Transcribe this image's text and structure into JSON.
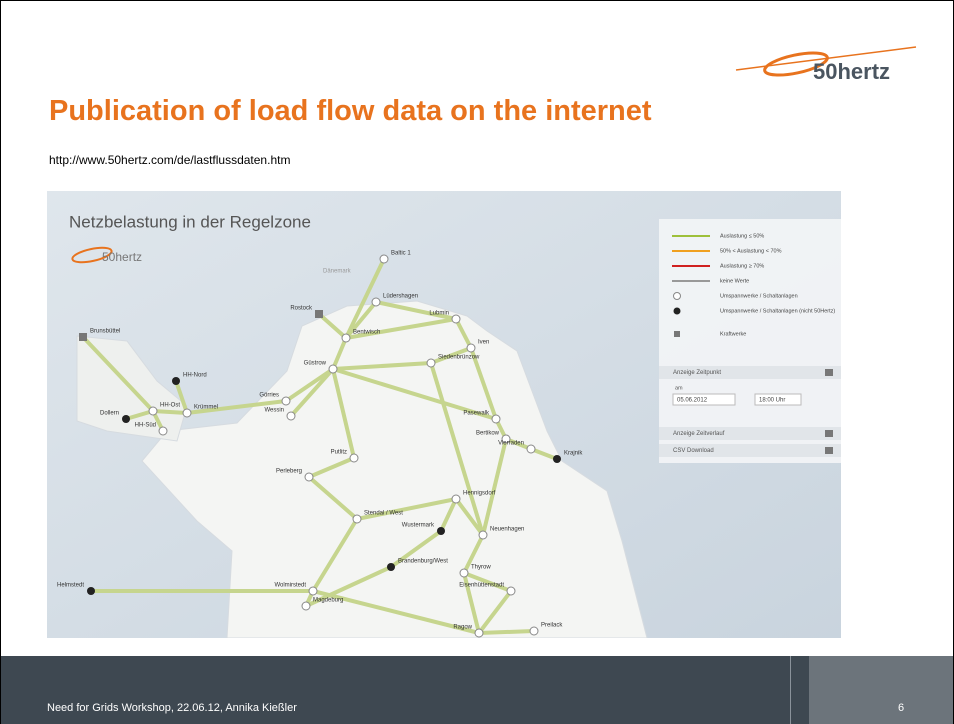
{
  "header": {
    "logo": "50hertz",
    "title": "Publication of load flow data on the internet",
    "url": "http://www.50hertz.com/de/lastflussdaten.htm"
  },
  "map": {
    "title": "Netzbelastung in der Regelzone",
    "logo": "50hertz",
    "places": [
      "Baltic 1",
      "Dänemark",
      "Lüdershagen",
      "Rostock",
      "Lubmin",
      "Brunsbüttel",
      "Bentwisch",
      "Iven",
      "Siedenbrünzow",
      "Güstrow",
      "HH-Nord",
      "Görries",
      "Dollern",
      "HH-Ost",
      "Krümmel",
      "Wessin",
      "Pasewalk",
      "HH-Süd",
      "Bertikow",
      "Vierraden",
      "Krajnik",
      "Putlitz",
      "Perleberg",
      "Hennigsdorf",
      "Stendal / West",
      "Wustermark",
      "Neuenhagen",
      "Helmstedt",
      "Wolmirstedt",
      "Brandenburg/West",
      "Thyrow",
      "Eisenhüttenstadt",
      "Magdeburg",
      "Ragow",
      "Preilack"
    ],
    "legend": {
      "items": [
        "Auslastung ≤ 50%",
        "50% < Auslastung < 70%",
        "Auslastung ≥ 70%",
        "keine Werte",
        "Umspannwerke / Schaltanlagen",
        "Umspannwerke / Schaltanlagen (nicht 50Hertz)",
        "Kraftwerke"
      ],
      "time_label": "Anzeige Zeitpunkt",
      "date_prefix": "am",
      "date": "05.06.2012",
      "time": "18:00 Uhr",
      "period": "Anzeige Zeitverlauf",
      "csv": "CSV Download"
    }
  },
  "footer": {
    "text": "Need for Grids Workshop, 22.06.12, Annika Kießler",
    "page": "6"
  }
}
